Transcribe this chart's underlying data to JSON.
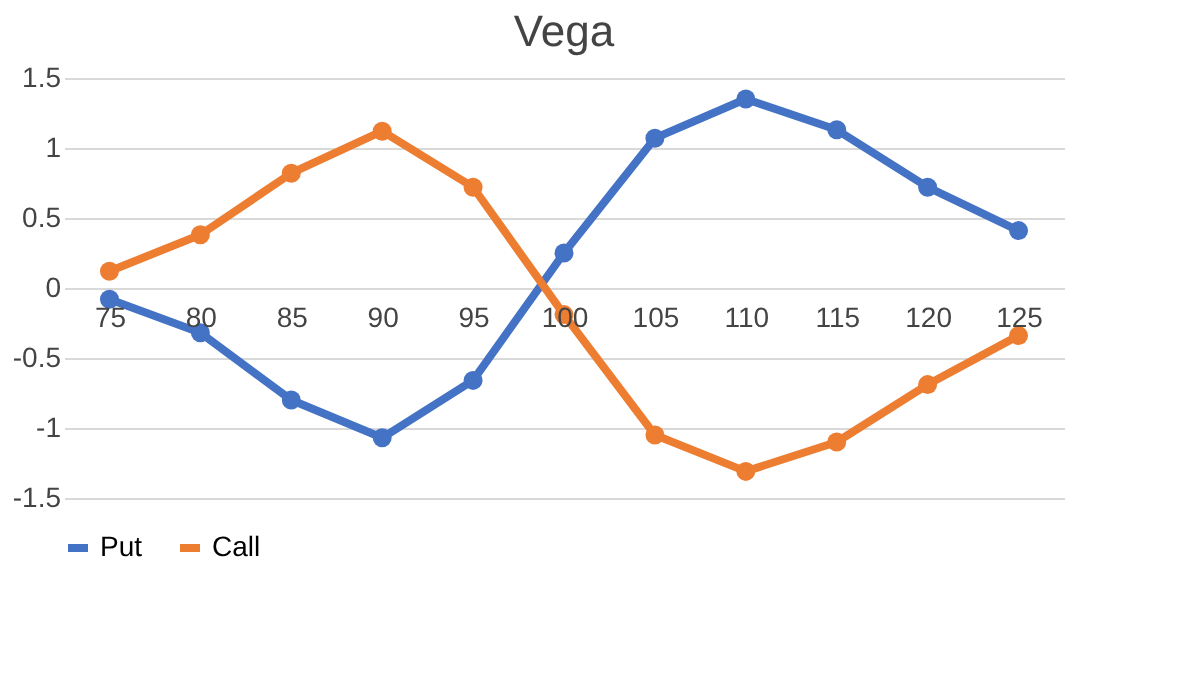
{
  "chart_data": {
    "type": "line",
    "title": "Vega",
    "categories": [
      "75",
      "80",
      "85",
      "90",
      "95",
      "100",
      "105",
      "110",
      "115",
      "120",
      "125"
    ],
    "series": [
      {
        "name": "Put",
        "color": "#4472c4",
        "values": [
          -0.08,
          -0.32,
          -0.8,
          -1.07,
          -0.66,
          0.25,
          1.07,
          1.35,
          1.13,
          0.72,
          0.41
        ]
      },
      {
        "name": "Call",
        "color": "#ed7d31",
        "values": [
          0.12,
          0.38,
          0.82,
          1.12,
          0.72,
          -0.19,
          -1.05,
          -1.31,
          -1.1,
          -0.69,
          -0.34
        ]
      }
    ],
    "ylim": [
      -1.5,
      1.5
    ],
    "yticks": [
      -1.5,
      -1,
      -0.5,
      0,
      0.5,
      1,
      1.5
    ],
    "grid": "y",
    "legend": "bottom",
    "marker": "circle",
    "line_style": "solid"
  }
}
